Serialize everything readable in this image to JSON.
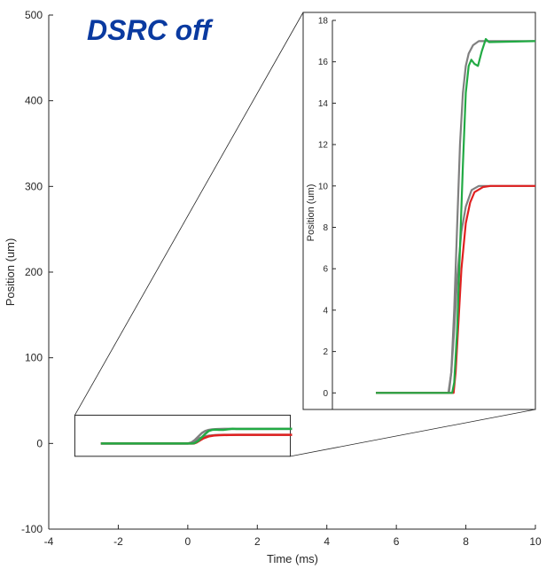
{
  "chart_data": [
    {
      "type": "line",
      "annotation": "DSRC off",
      "annotation_color": "#0a3aa0",
      "xlabel": "Time (ms)",
      "ylabel": "Position (um)",
      "xlim": [
        -4,
        10
      ],
      "ylim": [
        -100,
        500
      ],
      "xticks": [
        -4,
        -2,
        0,
        2,
        4,
        6,
        8,
        10
      ],
      "yticks": [
        -100,
        0,
        100,
        200,
        300,
        400,
        500
      ],
      "grid": false,
      "zoom_box": {
        "x": [
          -3.25,
          2.95
        ],
        "y": [
          -15,
          33
        ]
      }
    },
    {
      "type": "line",
      "inset": true,
      "xlabel": "",
      "ylabel": "Position (um)",
      "xlim": [
        -4,
        3
      ],
      "ylim": [
        -0.8,
        18
      ],
      "yticks": [
        0,
        2,
        4,
        6,
        8,
        10,
        12,
        14,
        16,
        18
      ],
      "grid": false
    }
  ],
  "series": [
    {
      "color": "#808080",
      "points": [
        [
          -2.5,
          0
        ],
        [
          0,
          0
        ],
        [
          0.1,
          1
        ],
        [
          0.2,
          4
        ],
        [
          0.3,
          8
        ],
        [
          0.4,
          12
        ],
        [
          0.5,
          14.5
        ],
        [
          0.6,
          15.8
        ],
        [
          0.7,
          16.4
        ],
        [
          0.85,
          16.8
        ],
        [
          1.05,
          17
        ],
        [
          3,
          17
        ]
      ]
    },
    {
      "color": "#808080",
      "points": [
        [
          -2.5,
          0
        ],
        [
          0.02,
          0
        ],
        [
          0.1,
          1
        ],
        [
          0.2,
          3
        ],
        [
          0.3,
          5.5
        ],
        [
          0.45,
          7.8
        ],
        [
          0.6,
          9
        ],
        [
          0.8,
          9.8
        ],
        [
          1.05,
          10
        ],
        [
          3,
          10
        ]
      ]
    },
    {
      "color": "#e02020",
      "points": [
        [
          -2.5,
          0
        ],
        [
          0.18,
          0
        ],
        [
          0.25,
          1
        ],
        [
          0.35,
          3.5
        ],
        [
          0.45,
          6
        ],
        [
          0.6,
          8.2
        ],
        [
          0.75,
          9.2
        ],
        [
          0.9,
          9.7
        ],
        [
          1.2,
          9.95
        ],
        [
          1.45,
          10
        ],
        [
          3,
          10
        ]
      ]
    },
    {
      "color": "#22aa44",
      "points": [
        [
          -2.5,
          0
        ],
        [
          0.13,
          0
        ],
        [
          0.2,
          0.5
        ],
        [
          0.3,
          3
        ],
        [
          0.4,
          7
        ],
        [
          0.5,
          11
        ],
        [
          0.6,
          14.5
        ],
        [
          0.7,
          15.8
        ],
        [
          0.79,
          16.1
        ],
        [
          0.9,
          15.9
        ],
        [
          1.02,
          15.8
        ],
        [
          1.15,
          16.5
        ],
        [
          1.29,
          17.1
        ],
        [
          1.4,
          16.95
        ],
        [
          3,
          17
        ]
      ]
    }
  ]
}
